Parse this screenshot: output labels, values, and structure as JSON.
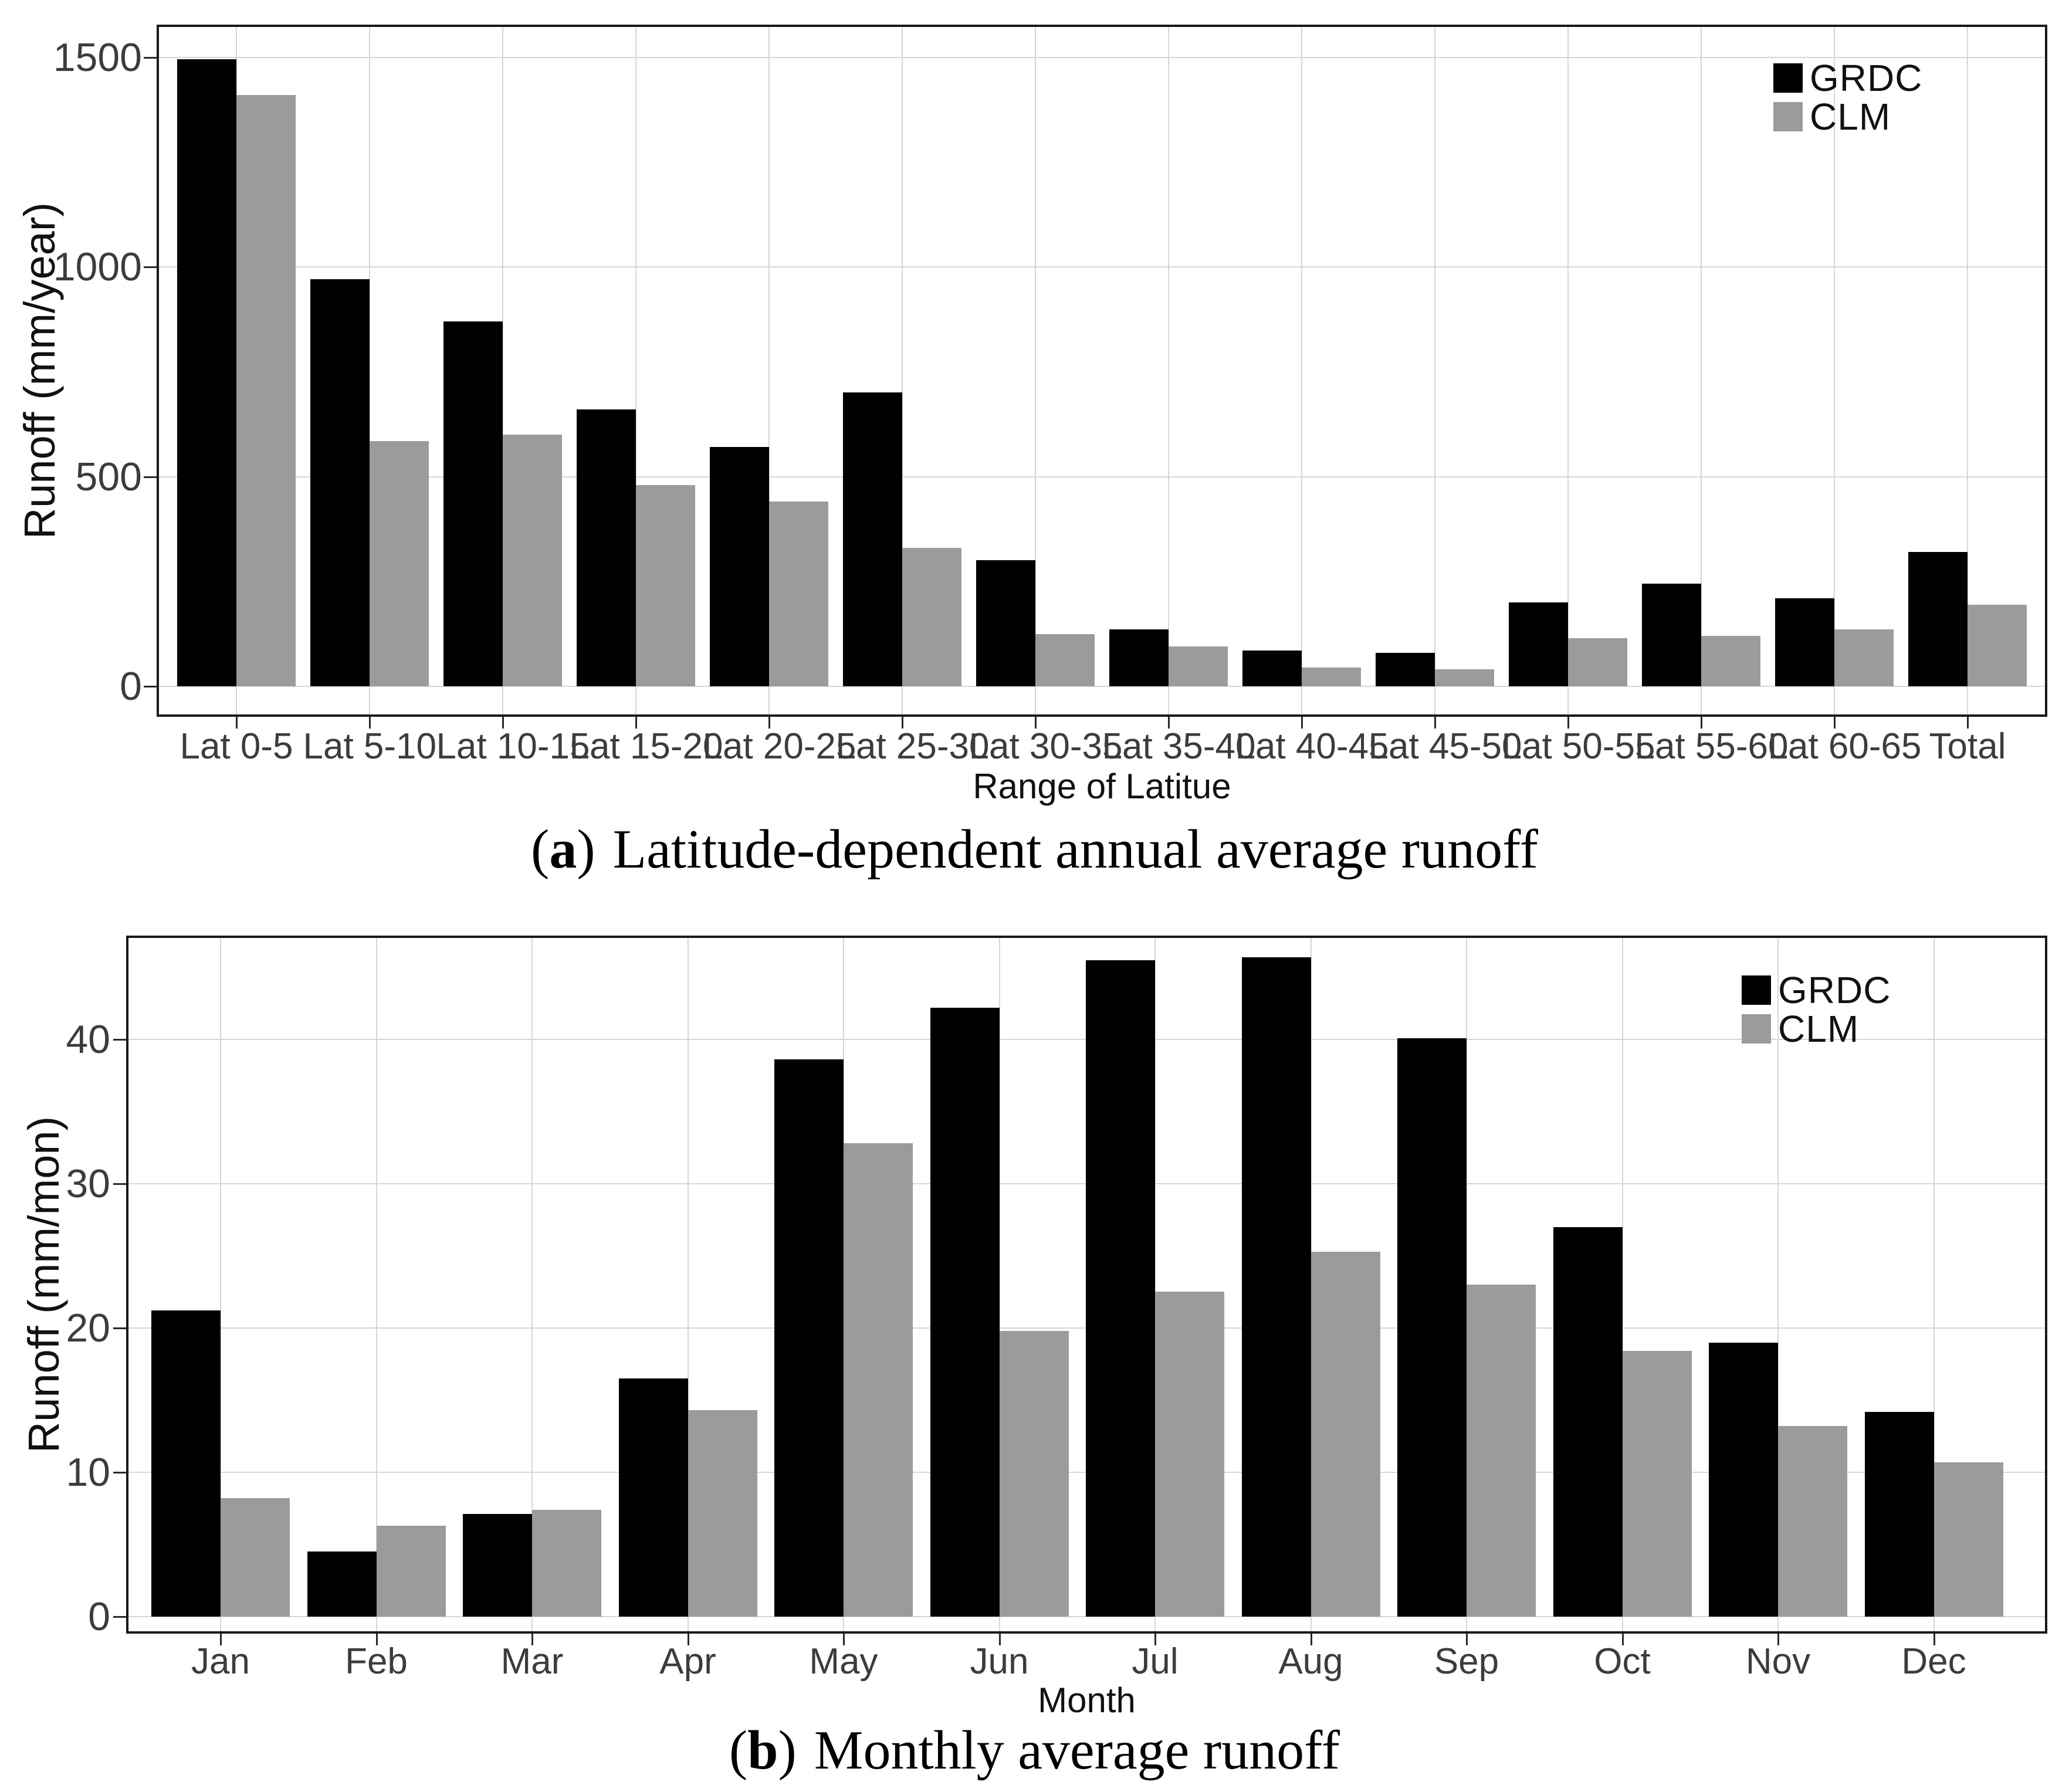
{
  "colors": {
    "grdc": "#000000",
    "clm": "#9b9b9b",
    "gridline": "#d6d6d6",
    "panel_border": "#1a1a1a",
    "tick": "#2a2a2a",
    "text": "#111111"
  },
  "chart_data": [
    {
      "type": "bar",
      "caption": {
        "open": "(",
        "letter": "a",
        "close": ")",
        "text": "Latitude-dependent annual average runoff"
      },
      "xlabel": "Range of Latitue",
      "ylabel": "Runoff (mm/year)",
      "legend_position": "top-right",
      "grid": true,
      "categories": [
        "Lat 0-5",
        "Lat 5-10",
        "Lat 10-15",
        "Lat 15-20",
        "Lat 20-25",
        "Lat 25-30",
        "Lat 30-35",
        "Lat 35-40",
        "Lat 40-45",
        "Lat 45-50",
        "Lat 50-55",
        "Lat 55-60",
        "Lat 60-65",
        "Total"
      ],
      "yticks": [
        0,
        500,
        1000,
        1500
      ],
      "ylim": [
        0,
        1574
      ],
      "series": [
        {
          "name": "GRDC",
          "color": "#000000",
          "values": [
            1495,
            970,
            870,
            660,
            570,
            700,
            300,
            135,
            85,
            80,
            200,
            245,
            210,
            320
          ]
        },
        {
          "name": "CLM",
          "color": "#9b9b9b",
          "values": [
            1410,
            585,
            600,
            480,
            440,
            330,
            125,
            95,
            45,
            40,
            115,
            120,
            135,
            195
          ]
        }
      ]
    },
    {
      "type": "bar",
      "caption": {
        "open": "(",
        "letter": "b",
        "close": ")",
        "text": "Monthly average runoff"
      },
      "xlabel": "Month",
      "ylabel": "Runoff (mm/mon)",
      "legend_position": "top-right",
      "grid": true,
      "categories": [
        "Jan",
        "Feb",
        "Mar",
        "Apr",
        "May",
        "Jun",
        "Jul",
        "Aug",
        "Sep",
        "Oct",
        "Nov",
        "Dec"
      ],
      "yticks": [
        0,
        10,
        20,
        30,
        40
      ],
      "ylim": [
        0,
        47.2
      ],
      "series": [
        {
          "name": "GRDC",
          "color": "#000000",
          "values": [
            21.2,
            4.5,
            7.1,
            16.5,
            38.6,
            42.2,
            45.5,
            45.7,
            40.1,
            27.0,
            19.0,
            14.2
          ]
        },
        {
          "name": "CLM",
          "color": "#9b9b9b",
          "values": [
            8.2,
            6.3,
            7.4,
            14.3,
            32.8,
            19.8,
            22.5,
            25.3,
            23.0,
            18.4,
            13.2,
            10.7
          ]
        }
      ]
    }
  ]
}
